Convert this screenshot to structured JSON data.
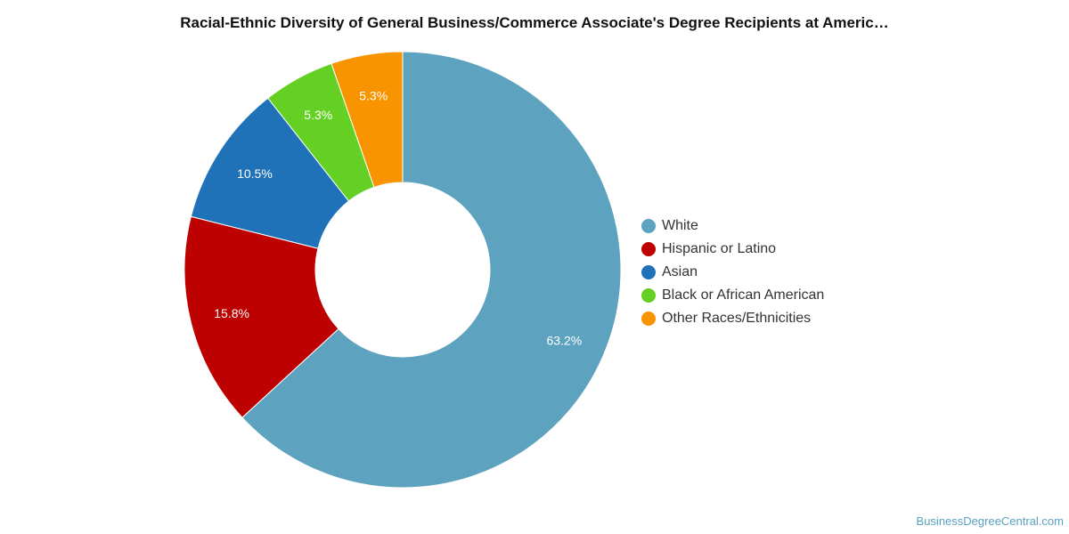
{
  "chart_data": {
    "type": "pie",
    "title": "Racial-Ethnic Diversity of General Business/Commerce Associate's Degree Recipients at Americ…",
    "slices": [
      {
        "label": "White",
        "value": 63.2,
        "display": "63.2%",
        "color": "#5da2be"
      },
      {
        "label": "Hispanic or Latino",
        "value": 15.8,
        "display": "15.8%",
        "color": "#bd0000"
      },
      {
        "label": "Asian",
        "value": 10.5,
        "display": "10.5%",
        "color": "#1f72b8"
      },
      {
        "label": "Black or African American",
        "value": 5.3,
        "display": "5.3%",
        "color": "#63d023"
      },
      {
        "label": "Other Races/Ethnicities",
        "value": 5.3,
        "display": "5.3%",
        "color": "#f89400"
      }
    ],
    "legend_position": "right"
  },
  "footer": {
    "source": "BusinessDegreeCentral.com"
  }
}
